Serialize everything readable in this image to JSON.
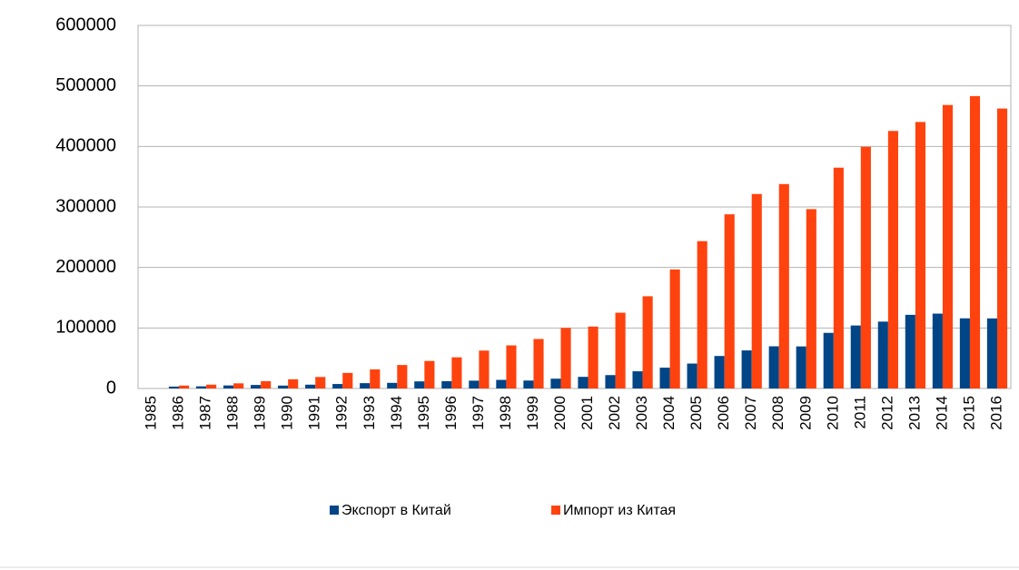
{
  "chart_data": {
    "type": "bar",
    "categories": [
      "1985",
      "1986",
      "1987",
      "1988",
      "1989",
      "1990",
      "1991",
      "1992",
      "1993",
      "1994",
      "1995",
      "1996",
      "1997",
      "1998",
      "1999",
      "2000",
      "2001",
      "2002",
      "2003",
      "2004",
      "2005",
      "2006",
      "2007",
      "2008",
      "2009",
      "2010",
      "2011",
      "2012",
      "2013",
      "2014",
      "2015",
      "2016"
    ],
    "series": [
      {
        "name": "Экспорт в Китай",
        "color": "#004586",
        "values": [
          0,
          3100,
          3500,
          5000,
          5800,
          4800,
          6300,
          7400,
          8800,
          9300,
          11700,
          12000,
          12900,
          14200,
          13100,
          16200,
          19200,
          22100,
          28400,
          34400,
          41200,
          53700,
          62900,
          69700,
          69500,
          91900,
          104100,
          110500,
          121700,
          123700,
          115900,
          115800
        ]
      },
      {
        "name": "Импорт из Китая",
        "color": "#ff420e",
        "values": [
          0,
          4800,
          6300,
          8500,
          12000,
          15200,
          19000,
          25700,
          31500,
          38800,
          45500,
          51500,
          62600,
          71200,
          81800,
          100000,
          102300,
          125200,
          152400,
          196700,
          243500,
          287800,
          321400,
          337800,
          296400,
          364900,
          399400,
          425600,
          440400,
          468500,
          483200,
          462600
        ]
      }
    ],
    "ylim": [
      0,
      600000
    ],
    "yticks": [
      0,
      100000,
      200000,
      300000,
      400000,
      500000,
      600000
    ],
    "grid": true
  }
}
